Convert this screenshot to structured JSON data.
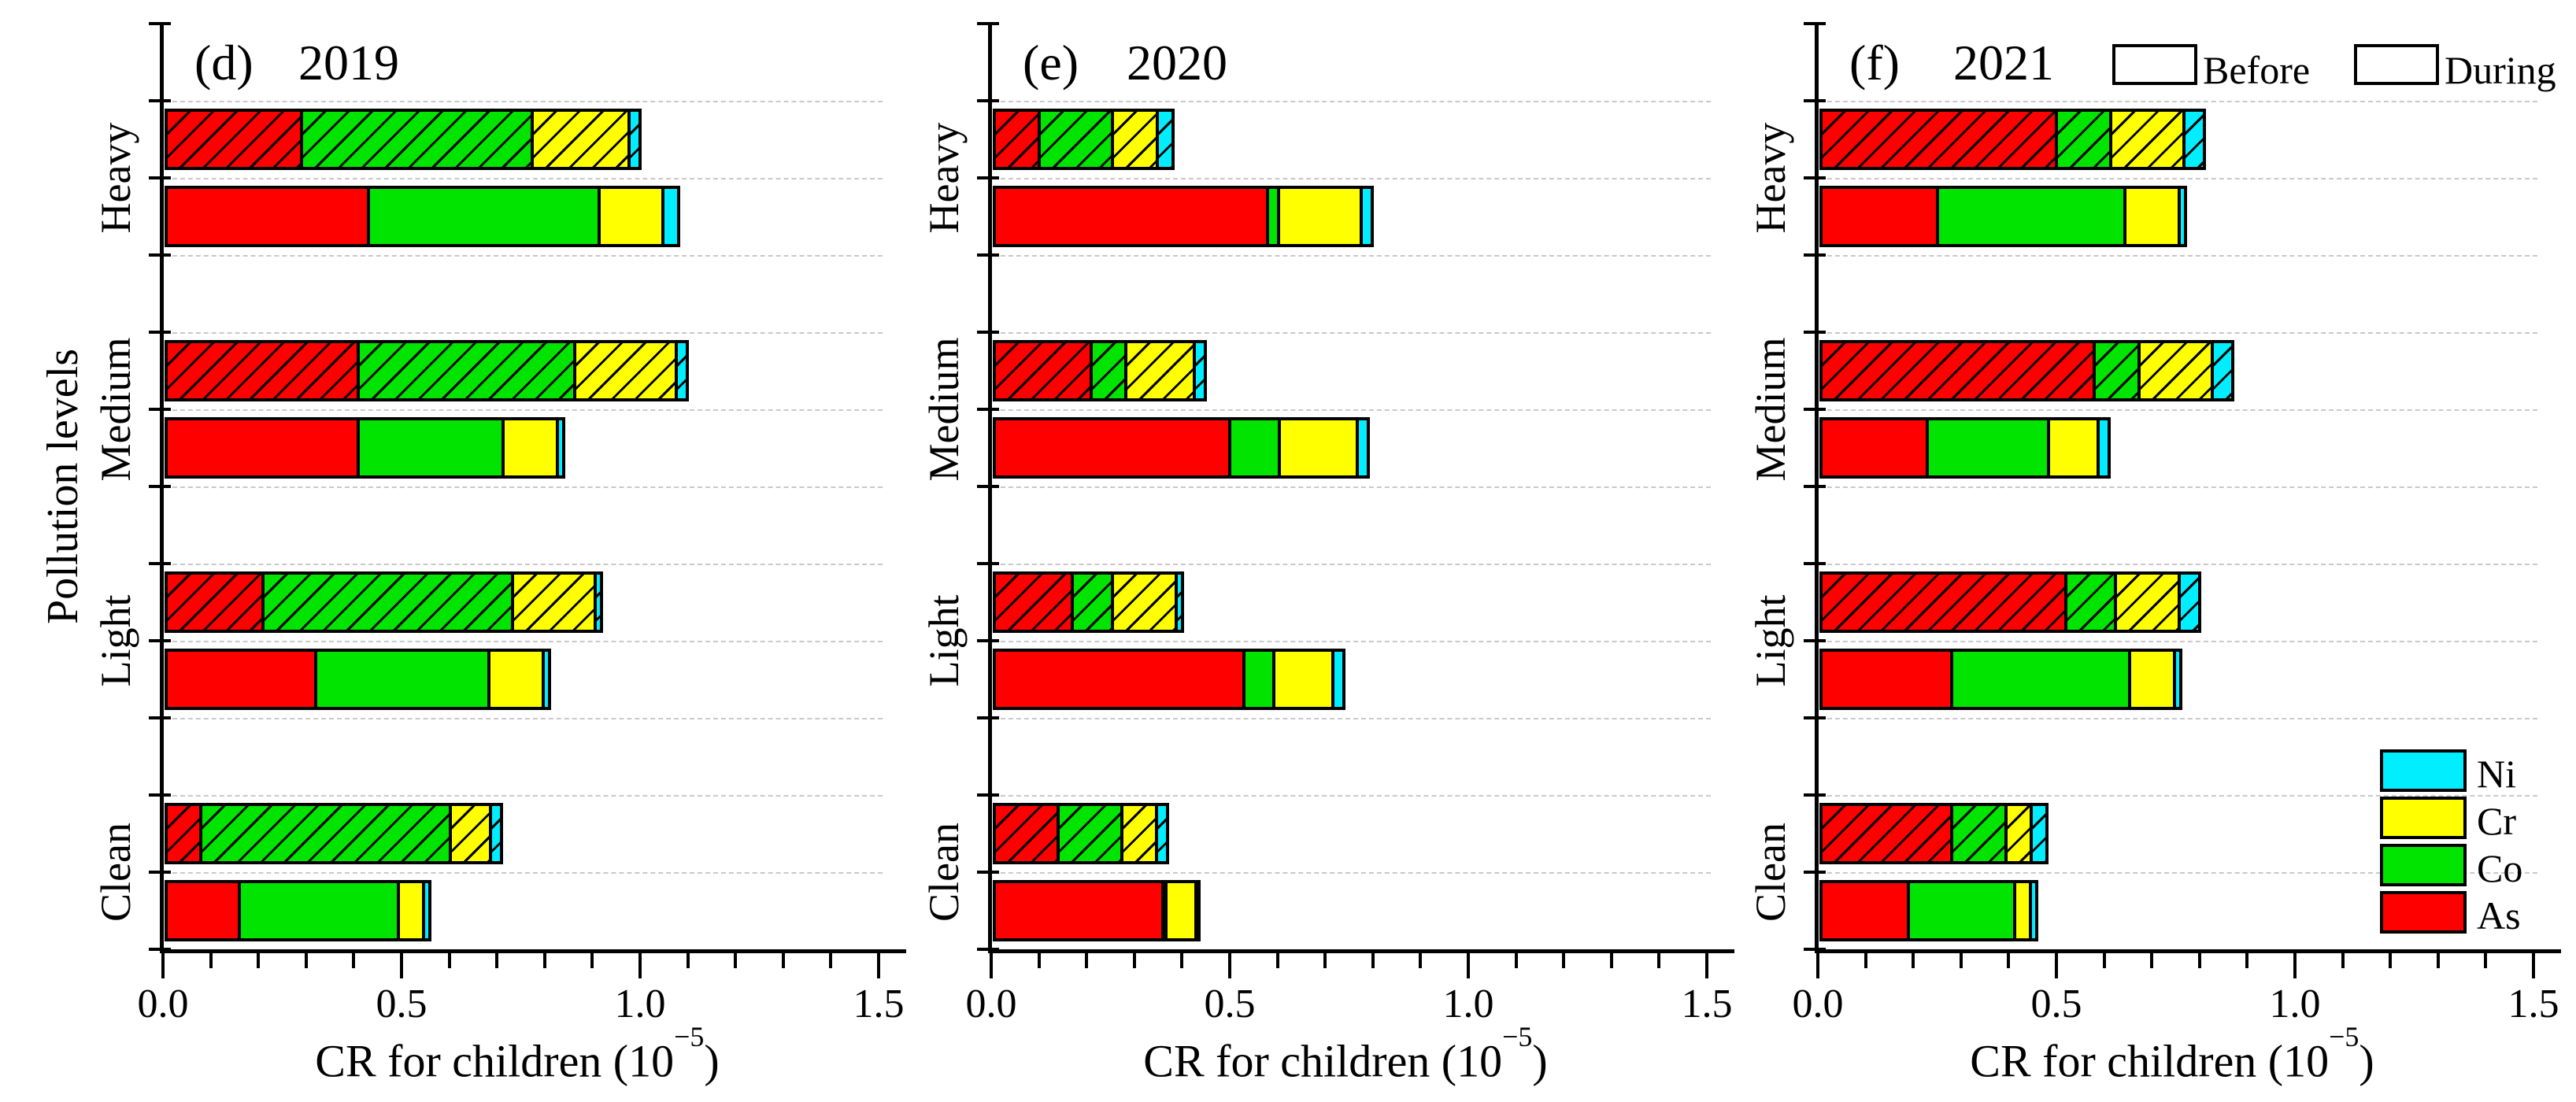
{
  "figure": {
    "y_axis_label": "Pollution levels",
    "x_axis_label": {
      "base": "CR for children (10",
      "exp": "−5",
      "close": ")"
    },
    "x_tick_labels": [
      "0.0",
      "0.5",
      "1.0",
      "1.5"
    ],
    "period_legend": [
      {
        "label": "Before",
        "fill": "solid-white"
      },
      {
        "label": "During",
        "fill": "hatched"
      }
    ],
    "metal_legend": [
      {
        "label": "Ni",
        "color": "#00EEFF"
      },
      {
        "label": "Cr",
        "color": "#FFFF00"
      },
      {
        "label": "Co",
        "color": "#00E400"
      },
      {
        "label": "As",
        "color": "#FF0000"
      }
    ]
  },
  "chart_data": {
    "type": "bar",
    "orientation": "horizontal",
    "stacked": true,
    "title": "",
    "xlabel": "CR for children (10⁻⁵)",
    "ylabel": "Pollution levels",
    "xlim": [
      0,
      1.5
    ],
    "x_major_ticks": [
      0.0,
      0.5,
      1.0,
      1.5
    ],
    "x_minor_step": 0.1,
    "grid": "horizontal-dashed",
    "legend_position": "panel-f-top-and-right",
    "categories_top_to_bottom": [
      "Heavy",
      "Medium",
      "Light",
      "Clean"
    ],
    "periods_top_to_bottom": [
      "During",
      "Before"
    ],
    "hatched_period": "During",
    "metals_stack_order": [
      "As",
      "Co",
      "Cr",
      "Ni"
    ],
    "metal_colors": {
      "As": "#FF0000",
      "Co": "#00E400",
      "Cr": "#FFFF00",
      "Ni": "#00EEFF"
    },
    "units": "10^-5",
    "panels": [
      {
        "panel_label": "(d)",
        "year": "2019",
        "values": {
          "Heavy": {
            "During": {
              "As": 0.29,
              "Co": 0.49,
              "Cr": 0.21,
              "Ni": 0.03
            },
            "Before": {
              "As": 0.43,
              "Co": 0.49,
              "Cr": 0.14,
              "Ni": 0.04
            }
          },
          "Medium": {
            "During": {
              "As": 0.41,
              "Co": 0.46,
              "Cr": 0.22,
              "Ni": 0.03
            },
            "Before": {
              "As": 0.41,
              "Co": 0.31,
              "Cr": 0.12,
              "Ni": 0.02
            }
          },
          "Light": {
            "During": {
              "As": 0.21,
              "Co": 0.53,
              "Cr": 0.18,
              "Ni": 0.02
            },
            "Before": {
              "As": 0.32,
              "Co": 0.37,
              "Cr": 0.12,
              "Ni": 0.02
            }
          },
          "Clean": {
            "During": {
              "As": 0.08,
              "Co": 0.53,
              "Cr": 0.09,
              "Ni": 0.03
            },
            "Before": {
              "As": 0.16,
              "Co": 0.34,
              "Cr": 0.06,
              "Ni": 0.02
            }
          }
        }
      },
      {
        "panel_label": "(e)",
        "year": "2020",
        "values": {
          "Heavy": {
            "During": {
              "As": 0.1,
              "Co": 0.16,
              "Cr": 0.1,
              "Ni": 0.04
            },
            "Before": {
              "As": 0.58,
              "Co": 0.03,
              "Cr": 0.18,
              "Ni": 0.03
            }
          },
          "Medium": {
            "During": {
              "As": 0.21,
              "Co": 0.08,
              "Cr": 0.15,
              "Ni": 0.03
            },
            "Before": {
              "As": 0.5,
              "Co": 0.11,
              "Cr": 0.17,
              "Ni": 0.03
            }
          },
          "Light": {
            "During": {
              "As": 0.17,
              "Co": 0.09,
              "Cr": 0.14,
              "Ni": 0.02
            },
            "Before": {
              "As": 0.53,
              "Co": 0.07,
              "Cr": 0.13,
              "Ni": 0.03
            }
          },
          "Clean": {
            "During": {
              "As": 0.14,
              "Co": 0.14,
              "Cr": 0.08,
              "Ni": 0.03
            },
            "Before": {
              "As": 0.36,
              "Co": 0.01,
              "Cr": 0.07,
              "Ni": 0.01
            }
          }
        }
      },
      {
        "panel_label": "(f)",
        "year": "2021",
        "values": {
          "Heavy": {
            "During": {
              "As": 0.5,
              "Co": 0.12,
              "Cr": 0.16,
              "Ni": 0.05
            },
            "Before": {
              "As": 0.25,
              "Co": 0.4,
              "Cr": 0.12,
              "Ni": 0.02
            }
          },
          "Medium": {
            "During": {
              "As": 0.58,
              "Co": 0.1,
              "Cr": 0.16,
              "Ni": 0.05
            },
            "Before": {
              "As": 0.23,
              "Co": 0.26,
              "Cr": 0.11,
              "Ni": 0.03
            }
          },
          "Light": {
            "During": {
              "As": 0.52,
              "Co": 0.11,
              "Cr": 0.14,
              "Ni": 0.05
            },
            "Before": {
              "As": 0.28,
              "Co": 0.38,
              "Cr": 0.1,
              "Ni": 0.02
            }
          },
          "Clean": {
            "During": {
              "As": 0.28,
              "Co": 0.12,
              "Cr": 0.06,
              "Ni": 0.04
            },
            "Before": {
              "As": 0.19,
              "Co": 0.23,
              "Cr": 0.04,
              "Ni": 0.02
            }
          }
        }
      }
    ]
  }
}
